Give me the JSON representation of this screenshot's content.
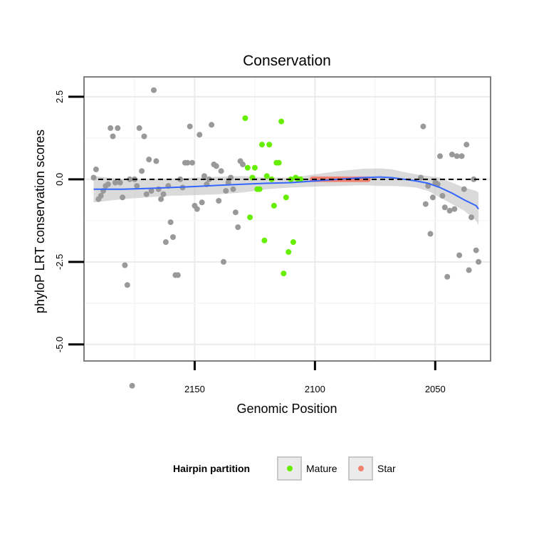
{
  "chart_data": {
    "type": "scatter",
    "title": "Conservation",
    "xlabel": "Genomic Position",
    "ylabel": "phyloP LRT conservation scores",
    "xlim": [
      2196,
      2027
    ],
    "x_reversed": true,
    "ylim": [
      -5.5,
      3.1
    ],
    "x_ticks": [
      2150,
      2100,
      2050
    ],
    "x_tick_labels": [
      "2150",
      "2100",
      "2050"
    ],
    "y_ticks": [
      2.5,
      0.0,
      -2.5,
      -5.0
    ],
    "y_tick_labels": [
      "2.5",
      "0.0",
      "-2.5",
      "-5.0"
    ],
    "reference_line": {
      "y": 0,
      "style": "dashed"
    },
    "legend": {
      "title": "Hairpin partition",
      "entries": [
        {
          "label": "Mature",
          "color": "#66ee00"
        },
        {
          "label": "Star",
          "color": "#f08070"
        }
      ]
    },
    "colors": {
      "other": "#999999",
      "Mature": "#66ee00",
      "Star": "#f08070",
      "smooth": "#3366ff",
      "ribbon": "#bbbbbb"
    },
    "series": [
      {
        "name": "other",
        "points": [
          [
            2192,
            0.05
          ],
          [
            2191,
            0.3
          ],
          [
            2190,
            -0.6
          ],
          [
            2189,
            -0.5
          ],
          [
            2188,
            -0.35
          ],
          [
            2187,
            -0.2
          ],
          [
            2186,
            -0.15
          ],
          [
            2185,
            1.55
          ],
          [
            2184,
            1.3
          ],
          [
            2183,
            -0.1
          ],
          [
            2182,
            1.55
          ],
          [
            2181,
            -0.1
          ],
          [
            2180,
            -0.55
          ],
          [
            2179,
            -2.6
          ],
          [
            2178,
            -3.2
          ],
          [
            2177,
            0.0
          ],
          [
            2176,
            -6.25
          ],
          [
            2175,
            0.0
          ],
          [
            2174,
            -0.2
          ],
          [
            2173,
            1.55
          ],
          [
            2172,
            0.25
          ],
          [
            2171,
            1.3
          ],
          [
            2170,
            -0.45
          ],
          [
            2169,
            0.6
          ],
          [
            2168,
            -0.35
          ],
          [
            2167,
            2.7
          ],
          [
            2166,
            0.55
          ],
          [
            2165,
            -0.3
          ],
          [
            2164,
            -0.6
          ],
          [
            2163,
            -0.45
          ],
          [
            2162,
            -1.9
          ],
          [
            2161,
            -0.2
          ],
          [
            2160,
            -1.3
          ],
          [
            2159,
            -1.75
          ],
          [
            2158,
            -2.9
          ],
          [
            2157,
            -2.9
          ],
          [
            2156,
            0.0
          ],
          [
            2155,
            -0.25
          ],
          [
            2154,
            0.5
          ],
          [
            2153,
            0.5
          ],
          [
            2152,
            1.6
          ],
          [
            2151,
            0.5
          ],
          [
            2150,
            -0.8
          ],
          [
            2149,
            -0.9
          ],
          [
            2148,
            1.35
          ],
          [
            2147,
            -0.7
          ],
          [
            2146,
            0.1
          ],
          [
            2145,
            -0.15
          ],
          [
            2144,
            0.0
          ],
          [
            2143,
            1.65
          ],
          [
            2142,
            0.45
          ],
          [
            2141,
            0.4
          ],
          [
            2140,
            -0.65
          ],
          [
            2139,
            0.25
          ],
          [
            2138,
            -2.5
          ],
          [
            2137,
            -0.35
          ],
          [
            2136,
            -0.1
          ],
          [
            2135,
            0.05
          ],
          [
            2134,
            -0.3
          ],
          [
            2133,
            -1.0
          ],
          [
            2132,
            -1.45
          ],
          [
            2131,
            0.55
          ],
          [
            2130,
            0.45
          ],
          [
            2056,
            0.05
          ],
          [
            2055,
            1.6
          ],
          [
            2054,
            -0.75
          ],
          [
            2053,
            -0.2
          ],
          [
            2052,
            -1.65
          ],
          [
            2051,
            -0.55
          ],
          [
            2050,
            -0.1
          ],
          [
            2049,
            -0.15
          ],
          [
            2048,
            0.7
          ],
          [
            2047,
            -0.5
          ],
          [
            2046,
            -0.85
          ],
          [
            2045,
            -2.95
          ],
          [
            2044,
            -0.95
          ],
          [
            2043,
            0.75
          ],
          [
            2042,
            -0.9
          ],
          [
            2041,
            0.7
          ],
          [
            2040,
            -2.3
          ],
          [
            2039,
            0.7
          ],
          [
            2038,
            -0.3
          ],
          [
            2037,
            1.05
          ],
          [
            2036,
            -2.75
          ],
          [
            2035,
            -1.15
          ],
          [
            2034,
            0.0
          ],
          [
            2033,
            -2.15
          ],
          [
            2032,
            -2.5
          ]
        ]
      },
      {
        "name": "Mature",
        "points": [
          [
            2129,
            1.85
          ],
          [
            2128,
            0.35
          ],
          [
            2127,
            -1.15
          ],
          [
            2126,
            0.05
          ],
          [
            2125,
            0.35
          ],
          [
            2124,
            -0.3
          ],
          [
            2123,
            -0.3
          ],
          [
            2122,
            1.05
          ],
          [
            2121,
            -1.85
          ],
          [
            2120,
            0.1
          ],
          [
            2119,
            1.05
          ],
          [
            2118,
            0.0
          ],
          [
            2117,
            -0.8
          ],
          [
            2116,
            0.5
          ],
          [
            2115,
            0.5
          ],
          [
            2114,
            1.75
          ],
          [
            2113,
            -2.85
          ],
          [
            2112,
            -0.55
          ],
          [
            2111,
            -2.2
          ],
          [
            2110,
            0.0
          ],
          [
            2109,
            -1.9
          ],
          [
            2108,
            0.05
          ],
          [
            2107,
            0.0
          ],
          [
            2106,
            0.0
          ]
        ]
      },
      {
        "name": "Star",
        "points": [
          [
            2101,
            0.0
          ],
          [
            2100,
            0.0
          ],
          [
            2099,
            0.0
          ],
          [
            2098,
            0.0
          ],
          [
            2097,
            0.0
          ],
          [
            2096,
            0.0
          ],
          [
            2095,
            0.0
          ],
          [
            2094,
            0.0
          ],
          [
            2093,
            0.0
          ],
          [
            2092,
            0.0
          ],
          [
            2091,
            0.0
          ],
          [
            2090,
            0.0
          ],
          [
            2089,
            0.0
          ],
          [
            2088,
            0.0
          ],
          [
            2087,
            0.0
          ],
          [
            2086,
            0.0
          ],
          [
            2085,
            0.0
          ],
          [
            2084,
            0.0
          ],
          [
            2083,
            0.0
          ],
          [
            2082,
            0.0
          ],
          [
            2081,
            0.0
          ],
          [
            2080,
            0.0
          ],
          [
            2079,
            0.0
          ],
          [
            2078,
            0.0
          ]
        ]
      }
    ],
    "smooth_line": [
      [
        2192,
        -0.3
      ],
      [
        2180,
        -0.3
      ],
      [
        2170,
        -0.28
      ],
      [
        2160,
        -0.25
      ],
      [
        2150,
        -0.22
      ],
      [
        2140,
        -0.18
      ],
      [
        2130,
        -0.15
      ],
      [
        2120,
        -0.12
      ],
      [
        2110,
        -0.1
      ],
      [
        2100,
        -0.05
      ],
      [
        2090,
        0.0
      ],
      [
        2080,
        0.05
      ],
      [
        2073,
        0.07
      ],
      [
        2068,
        0.05
      ],
      [
        2063,
        0.0
      ],
      [
        2058,
        -0.05
      ],
      [
        2053,
        -0.12
      ],
      [
        2048,
        -0.25
      ],
      [
        2043,
        -0.42
      ],
      [
        2038,
        -0.62
      ],
      [
        2033,
        -0.8
      ],
      [
        2032,
        -0.9
      ]
    ],
    "ribbon_upper": [
      [
        2192,
        0.1
      ],
      [
        2180,
        0.0
      ],
      [
        2170,
        0.0
      ],
      [
        2160,
        0.02
      ],
      [
        2150,
        0.05
      ],
      [
        2140,
        0.08
      ],
      [
        2130,
        0.1
      ],
      [
        2120,
        0.05
      ],
      [
        2110,
        0.05
      ],
      [
        2100,
        0.15
      ],
      [
        2090,
        0.25
      ],
      [
        2080,
        0.32
      ],
      [
        2073,
        0.33
      ],
      [
        2068,
        0.3
      ],
      [
        2063,
        0.22
      ],
      [
        2058,
        0.15
      ],
      [
        2053,
        0.1
      ],
      [
        2048,
        0.05
      ],
      [
        2043,
        -0.1
      ],
      [
        2038,
        -0.25
      ],
      [
        2033,
        -0.35
      ],
      [
        2032,
        -0.4
      ]
    ],
    "ribbon_lower": [
      [
        2192,
        -0.7
      ],
      [
        2180,
        -0.6
      ],
      [
        2170,
        -0.55
      ],
      [
        2160,
        -0.5
      ],
      [
        2150,
        -0.48
      ],
      [
        2140,
        -0.45
      ],
      [
        2130,
        -0.4
      ],
      [
        2120,
        -0.3
      ],
      [
        2110,
        -0.25
      ],
      [
        2100,
        -0.22
      ],
      [
        2090,
        -0.2
      ],
      [
        2080,
        -0.18
      ],
      [
        2073,
        -0.2
      ],
      [
        2068,
        -0.2
      ],
      [
        2063,
        -0.22
      ],
      [
        2058,
        -0.25
      ],
      [
        2053,
        -0.35
      ],
      [
        2048,
        -0.55
      ],
      [
        2043,
        -0.75
      ],
      [
        2038,
        -0.95
      ],
      [
        2033,
        -1.25
      ],
      [
        2032,
        -1.4
      ]
    ]
  }
}
